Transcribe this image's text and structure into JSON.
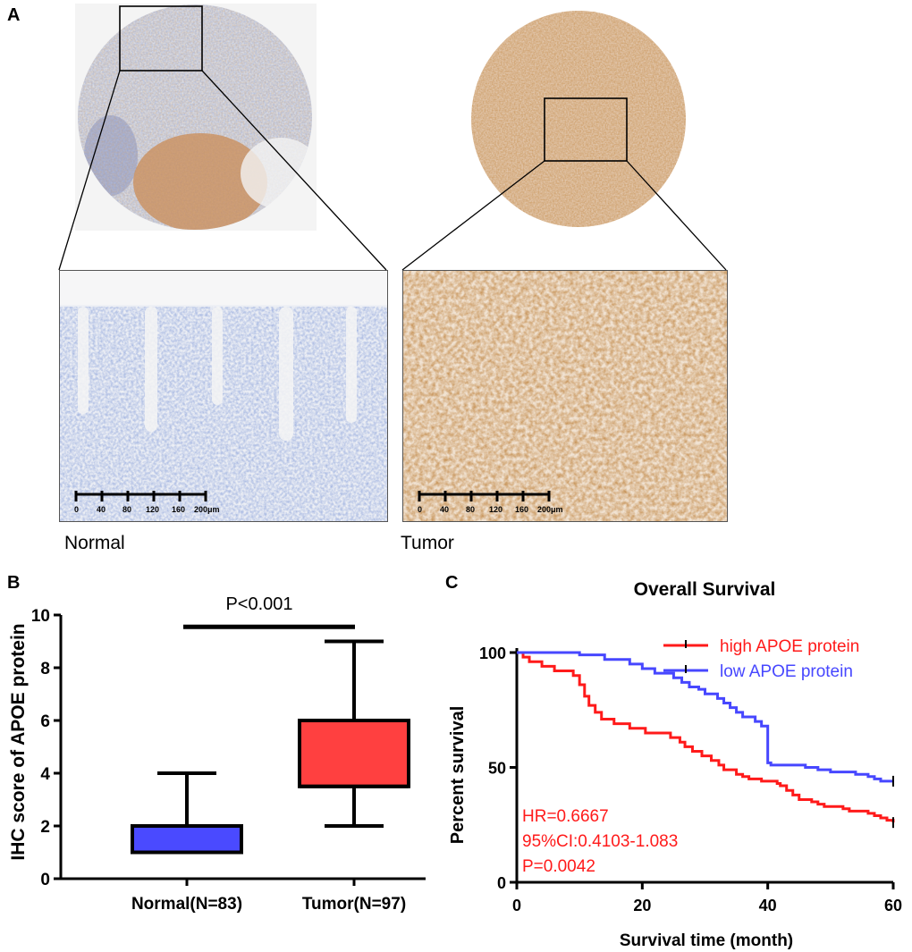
{
  "panel_a": {
    "letter": "A",
    "normal_caption": "Normal",
    "tumor_caption": "Tumor",
    "scalebar_labels": [
      "0",
      "40",
      "80",
      "120",
      "160",
      "200μm"
    ],
    "colors": {
      "normal_stain": "#b9c6e2",
      "tumor_stain": "#b7712f",
      "dab_brown": "#a4551f"
    }
  },
  "chart_data": [
    {
      "panel": "B",
      "type": "box",
      "ylabel": "IHC score of APOE protein",
      "ylim": [
        0,
        10
      ],
      "yticks": [
        "0",
        "2",
        "4",
        "6",
        "8",
        "10"
      ],
      "categories": [
        "Normal(N=83)",
        "Tumor(N=97)"
      ],
      "boxes": [
        {
          "name": "Normal(N=83)",
          "min": 1,
          "q1": 1,
          "median": 1,
          "q3": 2,
          "max": 4,
          "color": "#4a4aff"
        },
        {
          "name": "Tumor(N=97)",
          "min": 2,
          "q1": 3.5,
          "median": 3.5,
          "q3": 6,
          "max": 9,
          "color": "#ff4040"
        }
      ],
      "annotation": "P<0.001",
      "sig_bar_y": 9.55
    },
    {
      "panel": "C",
      "type": "line",
      "title": "Overall Survival",
      "xlabel": "Survival time (month)",
      "ylabel": "Percent survival",
      "xlim": [
        0,
        60
      ],
      "ylim": [
        0,
        100
      ],
      "xticks": [
        "0",
        "20",
        "40",
        "60"
      ],
      "yticks": [
        "0",
        "50",
        "100"
      ],
      "grid": false,
      "legend_position": "top-right",
      "series": [
        {
          "name": "high APOE protein",
          "color": "#ff1a1a",
          "steps": [
            [
              0,
              100
            ],
            [
              1,
              98
            ],
            [
              2,
              96
            ],
            [
              4,
              94
            ],
            [
              6,
              92
            ],
            [
              9,
              90
            ],
            [
              10,
              86
            ],
            [
              10.8,
              81
            ],
            [
              11.5,
              77
            ],
            [
              12.5,
              74
            ],
            [
              13.5,
              71
            ],
            [
              15.5,
              69
            ],
            [
              18,
              67
            ],
            [
              20.5,
              65
            ],
            [
              24.5,
              63
            ],
            [
              26,
              61
            ],
            [
              26.8,
              59
            ],
            [
              28,
              57
            ],
            [
              29.5,
              55
            ],
            [
              31,
              53
            ],
            [
              32.2,
              51
            ],
            [
              33,
              49
            ],
            [
              35,
              47
            ],
            [
              36,
              46
            ],
            [
              37,
              45
            ],
            [
              39,
              44
            ],
            [
              41.5,
              43
            ],
            [
              42,
              42
            ],
            [
              43,
              40
            ],
            [
              44,
              38
            ],
            [
              45,
              36
            ],
            [
              47,
              35
            ],
            [
              48,
              34
            ],
            [
              49,
              33
            ],
            [
              52,
              32
            ],
            [
              53,
              31
            ],
            [
              56,
              30
            ],
            [
              57,
              29
            ],
            [
              58,
              28
            ],
            [
              59,
              27
            ],
            [
              60,
              26
            ]
          ],
          "censor_x": [
            60
          ]
        },
        {
          "name": "low APOE protein",
          "color": "#4747ff",
          "steps": [
            [
              0,
              100
            ],
            [
              10,
              99
            ],
            [
              14,
              97
            ],
            [
              18,
              95
            ],
            [
              20,
              93
            ],
            [
              22,
              91
            ],
            [
              25,
              89
            ],
            [
              26.3,
              87
            ],
            [
              27.5,
              85
            ],
            [
              29,
              84
            ],
            [
              30,
              82
            ],
            [
              32,
              80
            ],
            [
              33,
              78
            ],
            [
              34,
              76
            ],
            [
              35,
              74
            ],
            [
              36,
              72
            ],
            [
              38,
              70
            ],
            [
              39,
              68
            ],
            [
              40,
              52
            ],
            [
              40.5,
              51
            ],
            [
              46,
              50
            ],
            [
              48,
              49
            ],
            [
              50,
              48
            ],
            [
              54,
              47
            ],
            [
              56,
              46
            ],
            [
              57,
              45
            ],
            [
              58,
              44
            ],
            [
              60,
              44
            ]
          ],
          "censor_x": [
            60
          ]
        }
      ],
      "stats": [
        "HR=0.6667",
        "95%CI:0.4103-1.083",
        "P=0.0042"
      ]
    }
  ]
}
